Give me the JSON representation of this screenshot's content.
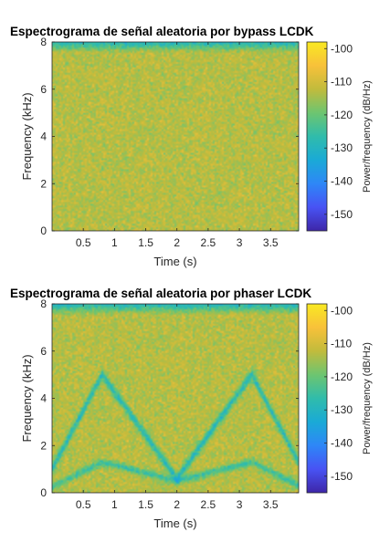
{
  "chart_data": [
    {
      "type": "heatmap",
      "title": "Espectrograma de señal aleatoria por bypass LCDK",
      "xlabel": "Time (s)",
      "ylabel": "Frequency (kHz)",
      "xlim": [
        0,
        3.95
      ],
      "ylim": [
        0,
        8
      ],
      "xticks": [
        "0.5",
        "1",
        "1.5",
        "2",
        "2.5",
        "3",
        "3.5"
      ],
      "yticks": [
        "0",
        "2",
        "4",
        "6",
        "8"
      ],
      "colorbar": {
        "label": "Power/frequency (dB/Hz)",
        "clim": [
          -155,
          -98
        ],
        "ticks": [
          "-100",
          "-110",
          "-120",
          "-130",
          "-140",
          "-150"
        ]
      },
      "colormap": [
        "#3e26a8",
        "#4853f4",
        "#2e87f7",
        "#1aaad6",
        "#30bcab",
        "#6dc570",
        "#c1bb3c",
        "#f8c13a",
        "#f9e922"
      ],
      "description_levels": {
        "background_dB": -114,
        "top_rolloff_kHz": 7.6,
        "notch_path": "none"
      }
    },
    {
      "type": "heatmap",
      "title": "Espectrograma de señal aleatoria por phaser LCDK",
      "xlabel": "Time (s)",
      "ylabel": "Frequency (kHz)",
      "xlim": [
        0,
        3.95
      ],
      "ylim": [
        0,
        8
      ],
      "xticks": [
        "0.5",
        "1",
        "1.5",
        "2",
        "2.5",
        "3",
        "3.5"
      ],
      "yticks": [
        "0",
        "2",
        "4",
        "6",
        "8"
      ],
      "colorbar": {
        "label": "Power/frequency (dB/Hz)",
        "clim": [
          -155,
          -98
        ],
        "ticks": [
          "-100",
          "-110",
          "-120",
          "-130",
          "-140",
          "-150"
        ]
      },
      "colormap": [
        "#3e26a8",
        "#4853f4",
        "#2e87f7",
        "#1aaad6",
        "#30bcab",
        "#6dc570",
        "#c1bb3c",
        "#f8c13a",
        "#f9e922"
      ],
      "notch_upper_kHz": {
        "t": [
          0.0,
          0.8,
          2.0,
          3.2,
          3.95
        ],
        "f": [
          1.0,
          5.0,
          0.6,
          5.0,
          1.3
        ]
      },
      "notch_lower_kHz": {
        "t": [
          0.0,
          0.8,
          2.0,
          3.2,
          3.95
        ],
        "f": [
          0.25,
          1.3,
          0.5,
          1.3,
          0.3
        ]
      }
    }
  ]
}
